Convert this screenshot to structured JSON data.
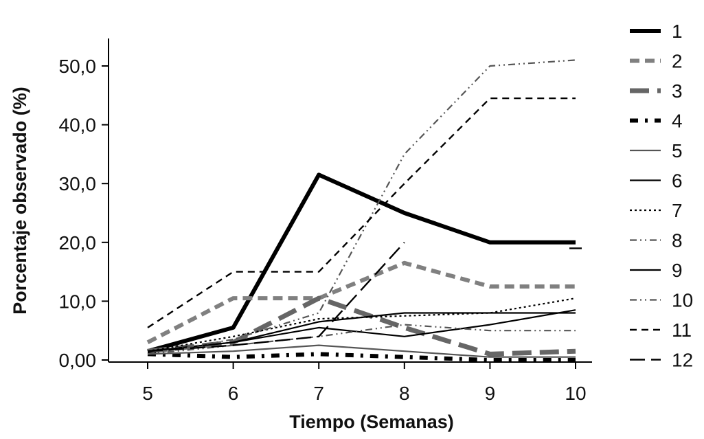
{
  "chart_data": {
    "type": "line",
    "title": "",
    "xlabel": "Tiempo (Semanas)",
    "ylabel": "Porcentaje observado (%)",
    "x": [
      5,
      6,
      7,
      8,
      9,
      10
    ],
    "xlim": [
      5,
      10
    ],
    "ylim": [
      0,
      55
    ],
    "y_ticks": [
      0,
      10,
      20,
      30,
      40,
      50
    ],
    "y_tick_labels": [
      "0,00",
      "10,0",
      "20,0",
      "30,0",
      "40,0",
      "50,0"
    ],
    "x_tick_labels": [
      "5",
      "6",
      "7",
      "8",
      "9",
      "10"
    ],
    "grid": false,
    "legend_position": "right",
    "series": [
      {
        "name": "1",
        "color": "#000000",
        "style": "solid-thick",
        "values": [
          1.5,
          5.5,
          31.5,
          25,
          20,
          20
        ]
      },
      {
        "name": "2",
        "color": "#808080",
        "style": "dashed-thick",
        "values": [
          3,
          10.5,
          10.5,
          16.5,
          12.5,
          12.5
        ]
      },
      {
        "name": "3",
        "color": "#666666",
        "style": "longdash-thick",
        "values": [
          1.5,
          3,
          10.5,
          5.5,
          1,
          1.5
        ]
      },
      {
        "name": "4",
        "color": "#000000",
        "style": "dashdot-thick",
        "values": [
          1,
          0.5,
          1,
          0.5,
          0,
          0
        ]
      },
      {
        "name": "5",
        "color": "#555555",
        "style": "solid",
        "values": [
          1,
          1.5,
          2.5,
          1.5,
          0.5,
          0.5
        ]
      },
      {
        "name": "6",
        "color": "#000000",
        "style": "solid",
        "values": [
          1.5,
          3,
          5.5,
          4,
          6,
          8.5
        ]
      },
      {
        "name": "7",
        "color": "#000000",
        "style": "dotted",
        "values": [
          1.5,
          4,
          7,
          7.5,
          8,
          10.5
        ]
      },
      {
        "name": "8",
        "color": "#555555",
        "style": "dashdotdot",
        "values": [
          1,
          2.5,
          4,
          6,
          5,
          5
        ]
      },
      {
        "name": "9",
        "color": "#000000",
        "style": "solid",
        "values": [
          1.5,
          3,
          6.5,
          8,
          8,
          8
        ]
      },
      {
        "name": "10",
        "color": "#555555",
        "style": "dashdotdot",
        "values": [
          1,
          3.5,
          8,
          35,
          50,
          51
        ]
      },
      {
        "name": "11",
        "color": "#000000",
        "style": "dashed",
        "values": [
          5.5,
          15,
          15,
          30,
          44.5,
          44.5
        ]
      },
      {
        "name": "12",
        "color": "#000000",
        "style": "longdash",
        "values": [
          1.5,
          2.5,
          4,
          20,
          null,
          19
        ]
      }
    ]
  }
}
